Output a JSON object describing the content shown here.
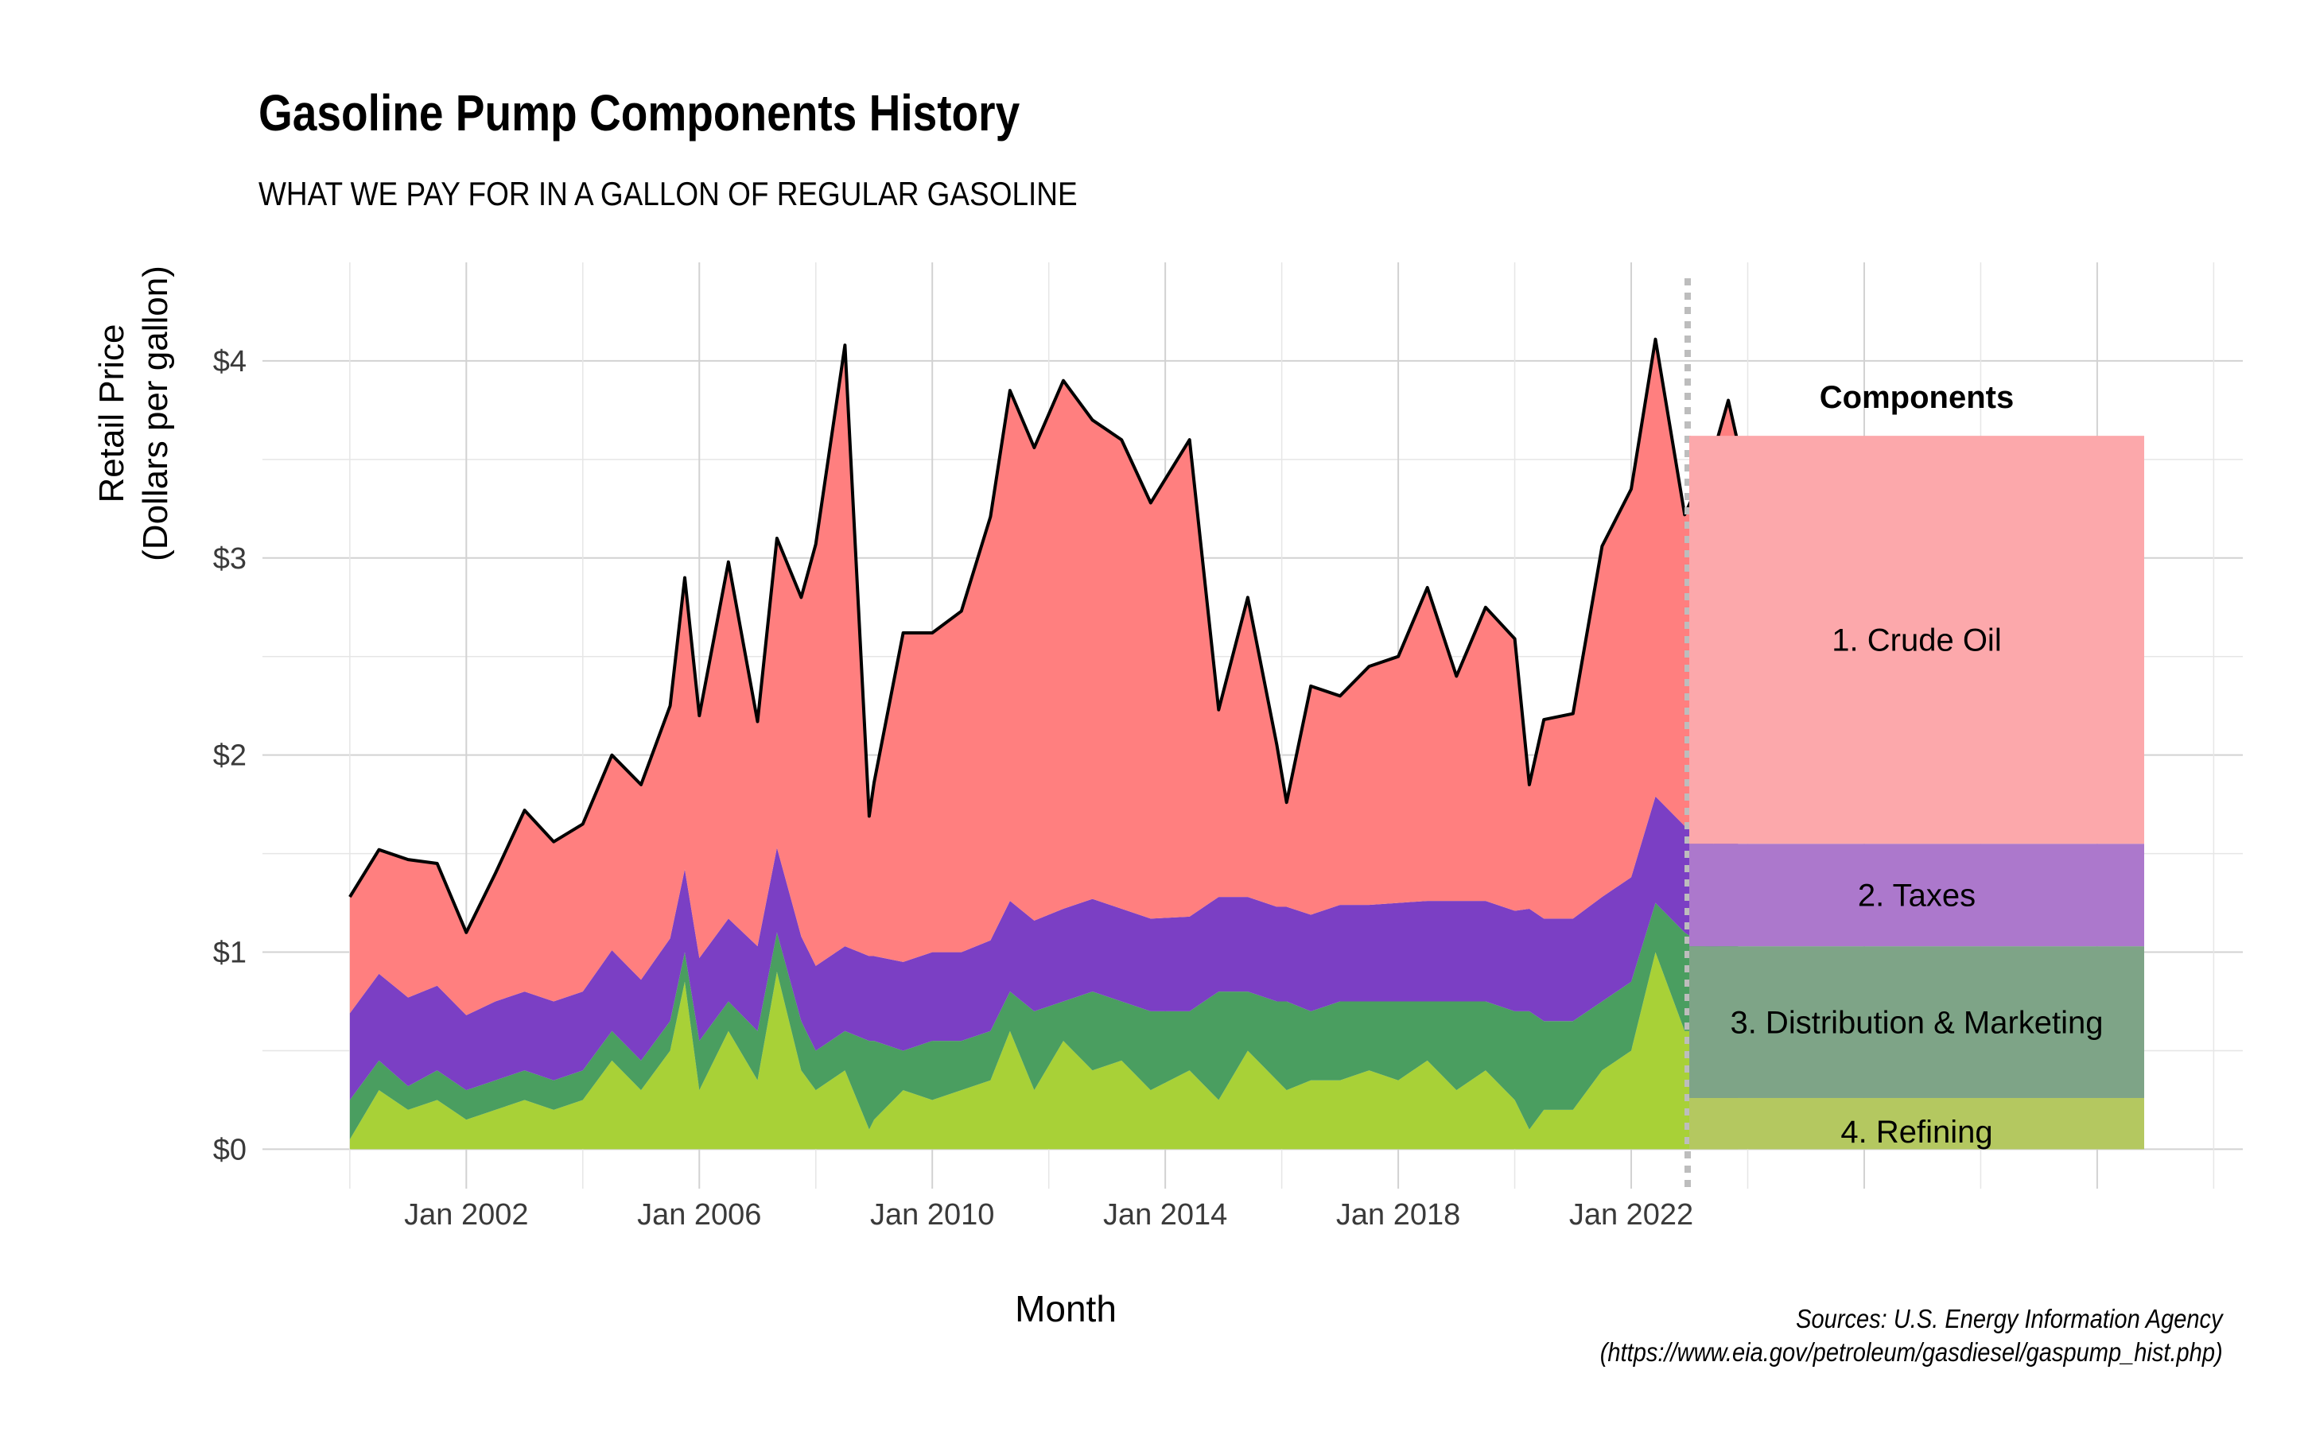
{
  "title": "Gasoline Pump Components History",
  "subtitle": "WHAT WE PAY FOR IN A GALLON OF REGULAR GASOLINE",
  "source_lines": [
    "Sources: U.S. Energy Information Agency",
    "(https://www.eia.gov/petroleum/gasdiesel/gaspump_hist.php)"
  ],
  "chart_data": {
    "type": "area",
    "stacked": true,
    "title": "Gasoline Pump Components History",
    "subtitle": "WHAT WE PAY FOR IN A GALLON OF REGULAR GASOLINE",
    "xlabel": "Month",
    "ylabel": [
      "Retail Price",
      "(Dollars per gallon)"
    ],
    "y_ticks": [
      "$0",
      "$1",
      "$2",
      "$3",
      "$4"
    ],
    "y_tick_values": [
      0,
      1,
      2,
      3,
      4
    ],
    "ylim": [
      -0.2,
      4.5
    ],
    "x_ticks": [
      "Jan 2002",
      "Jan 2006",
      "Jan 2010",
      "Jan 2014",
      "Jan 2018",
      "Jan 2022"
    ],
    "x_tick_values": [
      "2002-01",
      "2006-01",
      "2010-01",
      "2014-01",
      "2018-01",
      "2022-01"
    ],
    "xlim": [
      "1998-07",
      "2032-07"
    ],
    "grid": true,
    "legend": {
      "title": "Components",
      "position": "right"
    },
    "colors": {
      "crude": "#ff7f7f",
      "taxes": "#7b3fc4",
      "distribution": "#4a9e60",
      "refining": "#a8d137",
      "total_line": "#000000"
    },
    "x": [
      "2000-01",
      "2000-07",
      "2001-01",
      "2001-07",
      "2002-01",
      "2002-07",
      "2003-01",
      "2003-07",
      "2004-01",
      "2004-07",
      "2005-01",
      "2005-07",
      "2005-10",
      "2006-01",
      "2006-07",
      "2007-01",
      "2007-05",
      "2007-10",
      "2008-01",
      "2008-07",
      "2008-12",
      "2009-01",
      "2009-07",
      "2010-01",
      "2010-07",
      "2011-01",
      "2011-05",
      "2011-10",
      "2012-04",
      "2012-10",
      "2013-04",
      "2013-10",
      "2014-06",
      "2014-12",
      "2015-06",
      "2015-12",
      "2016-02",
      "2016-07",
      "2017-01",
      "2017-07",
      "2018-01",
      "2018-07",
      "2019-01",
      "2019-07",
      "2020-01",
      "2020-04",
      "2020-07",
      "2021-01",
      "2021-07",
      "2022-01",
      "2022-06",
      "2022-12",
      "2023-06",
      "2023-09",
      "2023-11"
    ],
    "series": [
      {
        "name": "4. Refining",
        "values": [
          0.05,
          0.3,
          0.2,
          0.25,
          0.15,
          0.2,
          0.25,
          0.2,
          0.25,
          0.45,
          0.3,
          0.5,
          0.85,
          0.3,
          0.6,
          0.35,
          0.9,
          0.4,
          0.3,
          0.4,
          0.1,
          0.15,
          0.3,
          0.25,
          0.3,
          0.35,
          0.6,
          0.3,
          0.55,
          0.4,
          0.45,
          0.3,
          0.4,
          0.25,
          0.5,
          0.35,
          0.3,
          0.35,
          0.35,
          0.4,
          0.35,
          0.45,
          0.3,
          0.4,
          0.25,
          0.1,
          0.2,
          0.2,
          0.4,
          0.5,
          1.0,
          0.6,
          0.6,
          0.7,
          0.65
        ]
      },
      {
        "name": "3. Distribution & Marketing",
        "values": [
          0.2,
          0.15,
          0.12,
          0.15,
          0.15,
          0.15,
          0.15,
          0.15,
          0.15,
          0.15,
          0.15,
          0.15,
          0.15,
          0.25,
          0.15,
          0.25,
          0.2,
          0.25,
          0.2,
          0.2,
          0.45,
          0.4,
          0.2,
          0.3,
          0.25,
          0.25,
          0.2,
          0.4,
          0.2,
          0.4,
          0.3,
          0.4,
          0.3,
          0.55,
          0.3,
          0.4,
          0.45,
          0.35,
          0.4,
          0.35,
          0.4,
          0.3,
          0.45,
          0.35,
          0.45,
          0.6,
          0.45,
          0.45,
          0.35,
          0.35,
          0.25,
          0.5,
          0.4,
          0.4,
          0.4
        ]
      },
      {
        "name": "2. Taxes",
        "values": [
          0.44,
          0.44,
          0.45,
          0.43,
          0.38,
          0.4,
          0.4,
          0.4,
          0.4,
          0.41,
          0.41,
          0.42,
          0.42,
          0.42,
          0.42,
          0.43,
          0.43,
          0.43,
          0.43,
          0.43,
          0.43,
          0.43,
          0.45,
          0.45,
          0.45,
          0.46,
          0.46,
          0.46,
          0.47,
          0.47,
          0.47,
          0.47,
          0.48,
          0.48,
          0.48,
          0.48,
          0.48,
          0.49,
          0.49,
          0.49,
          0.5,
          0.51,
          0.51,
          0.51,
          0.51,
          0.52,
          0.52,
          0.52,
          0.53,
          0.53,
          0.54,
          0.54,
          0.55,
          0.54,
          0.52
        ]
      },
      {
        "name": "1. Crude Oil",
        "values": [
          0.59,
          0.63,
          0.7,
          0.62,
          0.42,
          0.65,
          0.92,
          0.81,
          0.85,
          0.99,
          0.99,
          1.18,
          1.48,
          1.23,
          1.81,
          1.14,
          1.57,
          1.72,
          2.14,
          3.05,
          0.71,
          0.88,
          1.67,
          1.62,
          1.73,
          2.15,
          2.59,
          2.4,
          2.68,
          2.43,
          2.38,
          2.11,
          2.42,
          0.95,
          1.52,
          0.82,
          0.53,
          1.16,
          1.06,
          1.21,
          1.25,
          1.59,
          1.14,
          1.49,
          1.38,
          0.63,
          1.01,
          1.04,
          1.78,
          1.97,
          2.32,
          1.58,
          1.99,
          2.16,
          2.01
        ]
      }
    ],
    "total": [
      1.28,
      1.52,
      1.47,
      1.45,
      1.1,
      1.4,
      1.72,
      1.56,
      1.65,
      2.0,
      1.85,
      2.25,
      2.9,
      2.2,
      2.98,
      2.17,
      3.1,
      2.8,
      3.07,
      4.08,
      1.69,
      1.86,
      2.62,
      2.62,
      2.73,
      3.21,
      3.85,
      3.56,
      3.9,
      3.7,
      3.6,
      3.28,
      3.6,
      2.23,
      2.8,
      2.05,
      1.76,
      2.35,
      2.3,
      2.45,
      2.5,
      2.85,
      2.4,
      2.75,
      2.59,
      1.85,
      2.18,
      2.21,
      3.06,
      3.35,
      4.11,
      3.22,
      3.54,
      3.8,
      3.58
    ],
    "legend_values": [
      {
        "name": "1. Crude Oil",
        "value": 2.07
      },
      {
        "name": "2. Taxes",
        "value": 0.52
      },
      {
        "name": "3. Distribution & Marketing",
        "value": 0.77
      },
      {
        "name": "4. Refining",
        "value": 0.26
      }
    ]
  }
}
